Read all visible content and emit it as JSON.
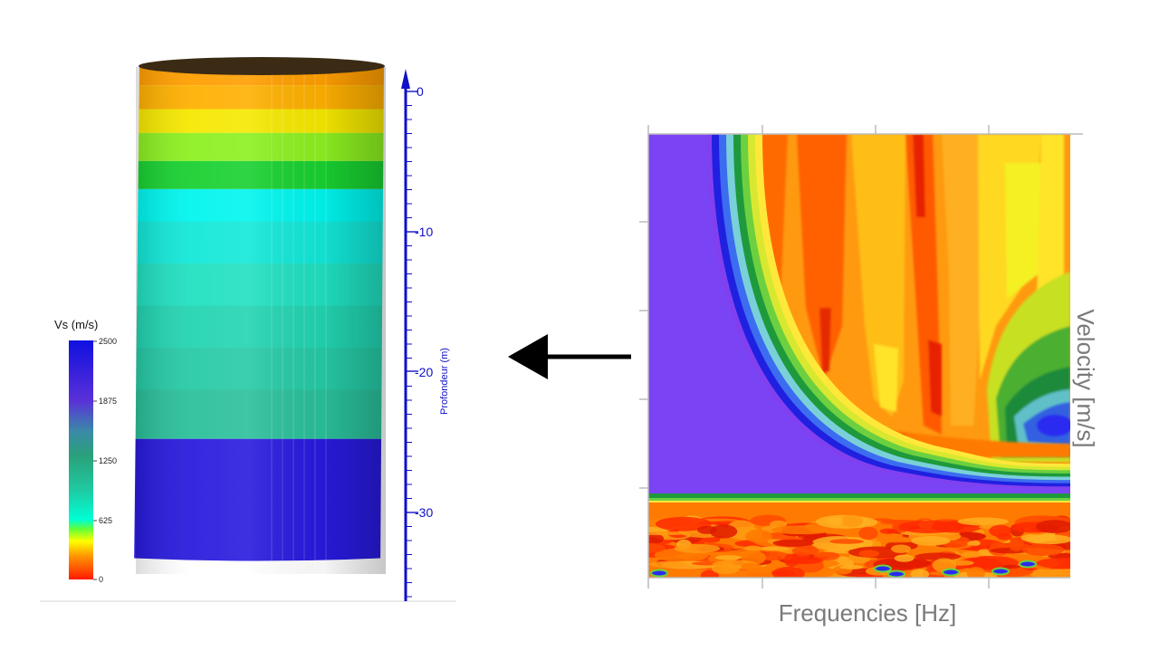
{
  "left_panel": {
    "colorbar": {
      "title": "Vs (m/s)",
      "ticks": [
        "2500",
        "1875",
        "1250",
        "625",
        "0"
      ],
      "range": [
        0,
        2500
      ]
    },
    "depth_axis": {
      "label": "Profondeur (m)",
      "ticks": [
        "0",
        "-10",
        "-20",
        "-30"
      ],
      "range": [
        0,
        -36
      ],
      "color": "#1010c8"
    },
    "layers": [
      {
        "top": 0,
        "bottom": -1.3,
        "vs": 260
      },
      {
        "top": -1.3,
        "bottom": -3.0,
        "vs": 300
      },
      {
        "top": -3.0,
        "bottom": -4.7,
        "vs": 380
      },
      {
        "top": -4.7,
        "bottom": -6.7,
        "vs": 470
      },
      {
        "top": -6.7,
        "bottom": -8.7,
        "vs": 520
      },
      {
        "top": -8.7,
        "bottom": -11,
        "vs": 640
      },
      {
        "top": -11,
        "bottom": -14,
        "vs": 720
      },
      {
        "top": -14,
        "bottom": -17,
        "vs": 780
      },
      {
        "top": -17,
        "bottom": -20,
        "vs": 820
      },
      {
        "top": -20,
        "bottom": -23,
        "vs": 860
      },
      {
        "top": -23,
        "bottom": -26.5,
        "vs": 900
      },
      {
        "top": -26.5,
        "bottom": -35,
        "vs": 2300
      }
    ]
  },
  "arrow": {
    "direction": "left"
  },
  "right_panel": {
    "xlabel": "Frequencies [Hz]",
    "ylabel": "Velocity [m/s]",
    "axis_color": "#8a8a8a"
  }
}
